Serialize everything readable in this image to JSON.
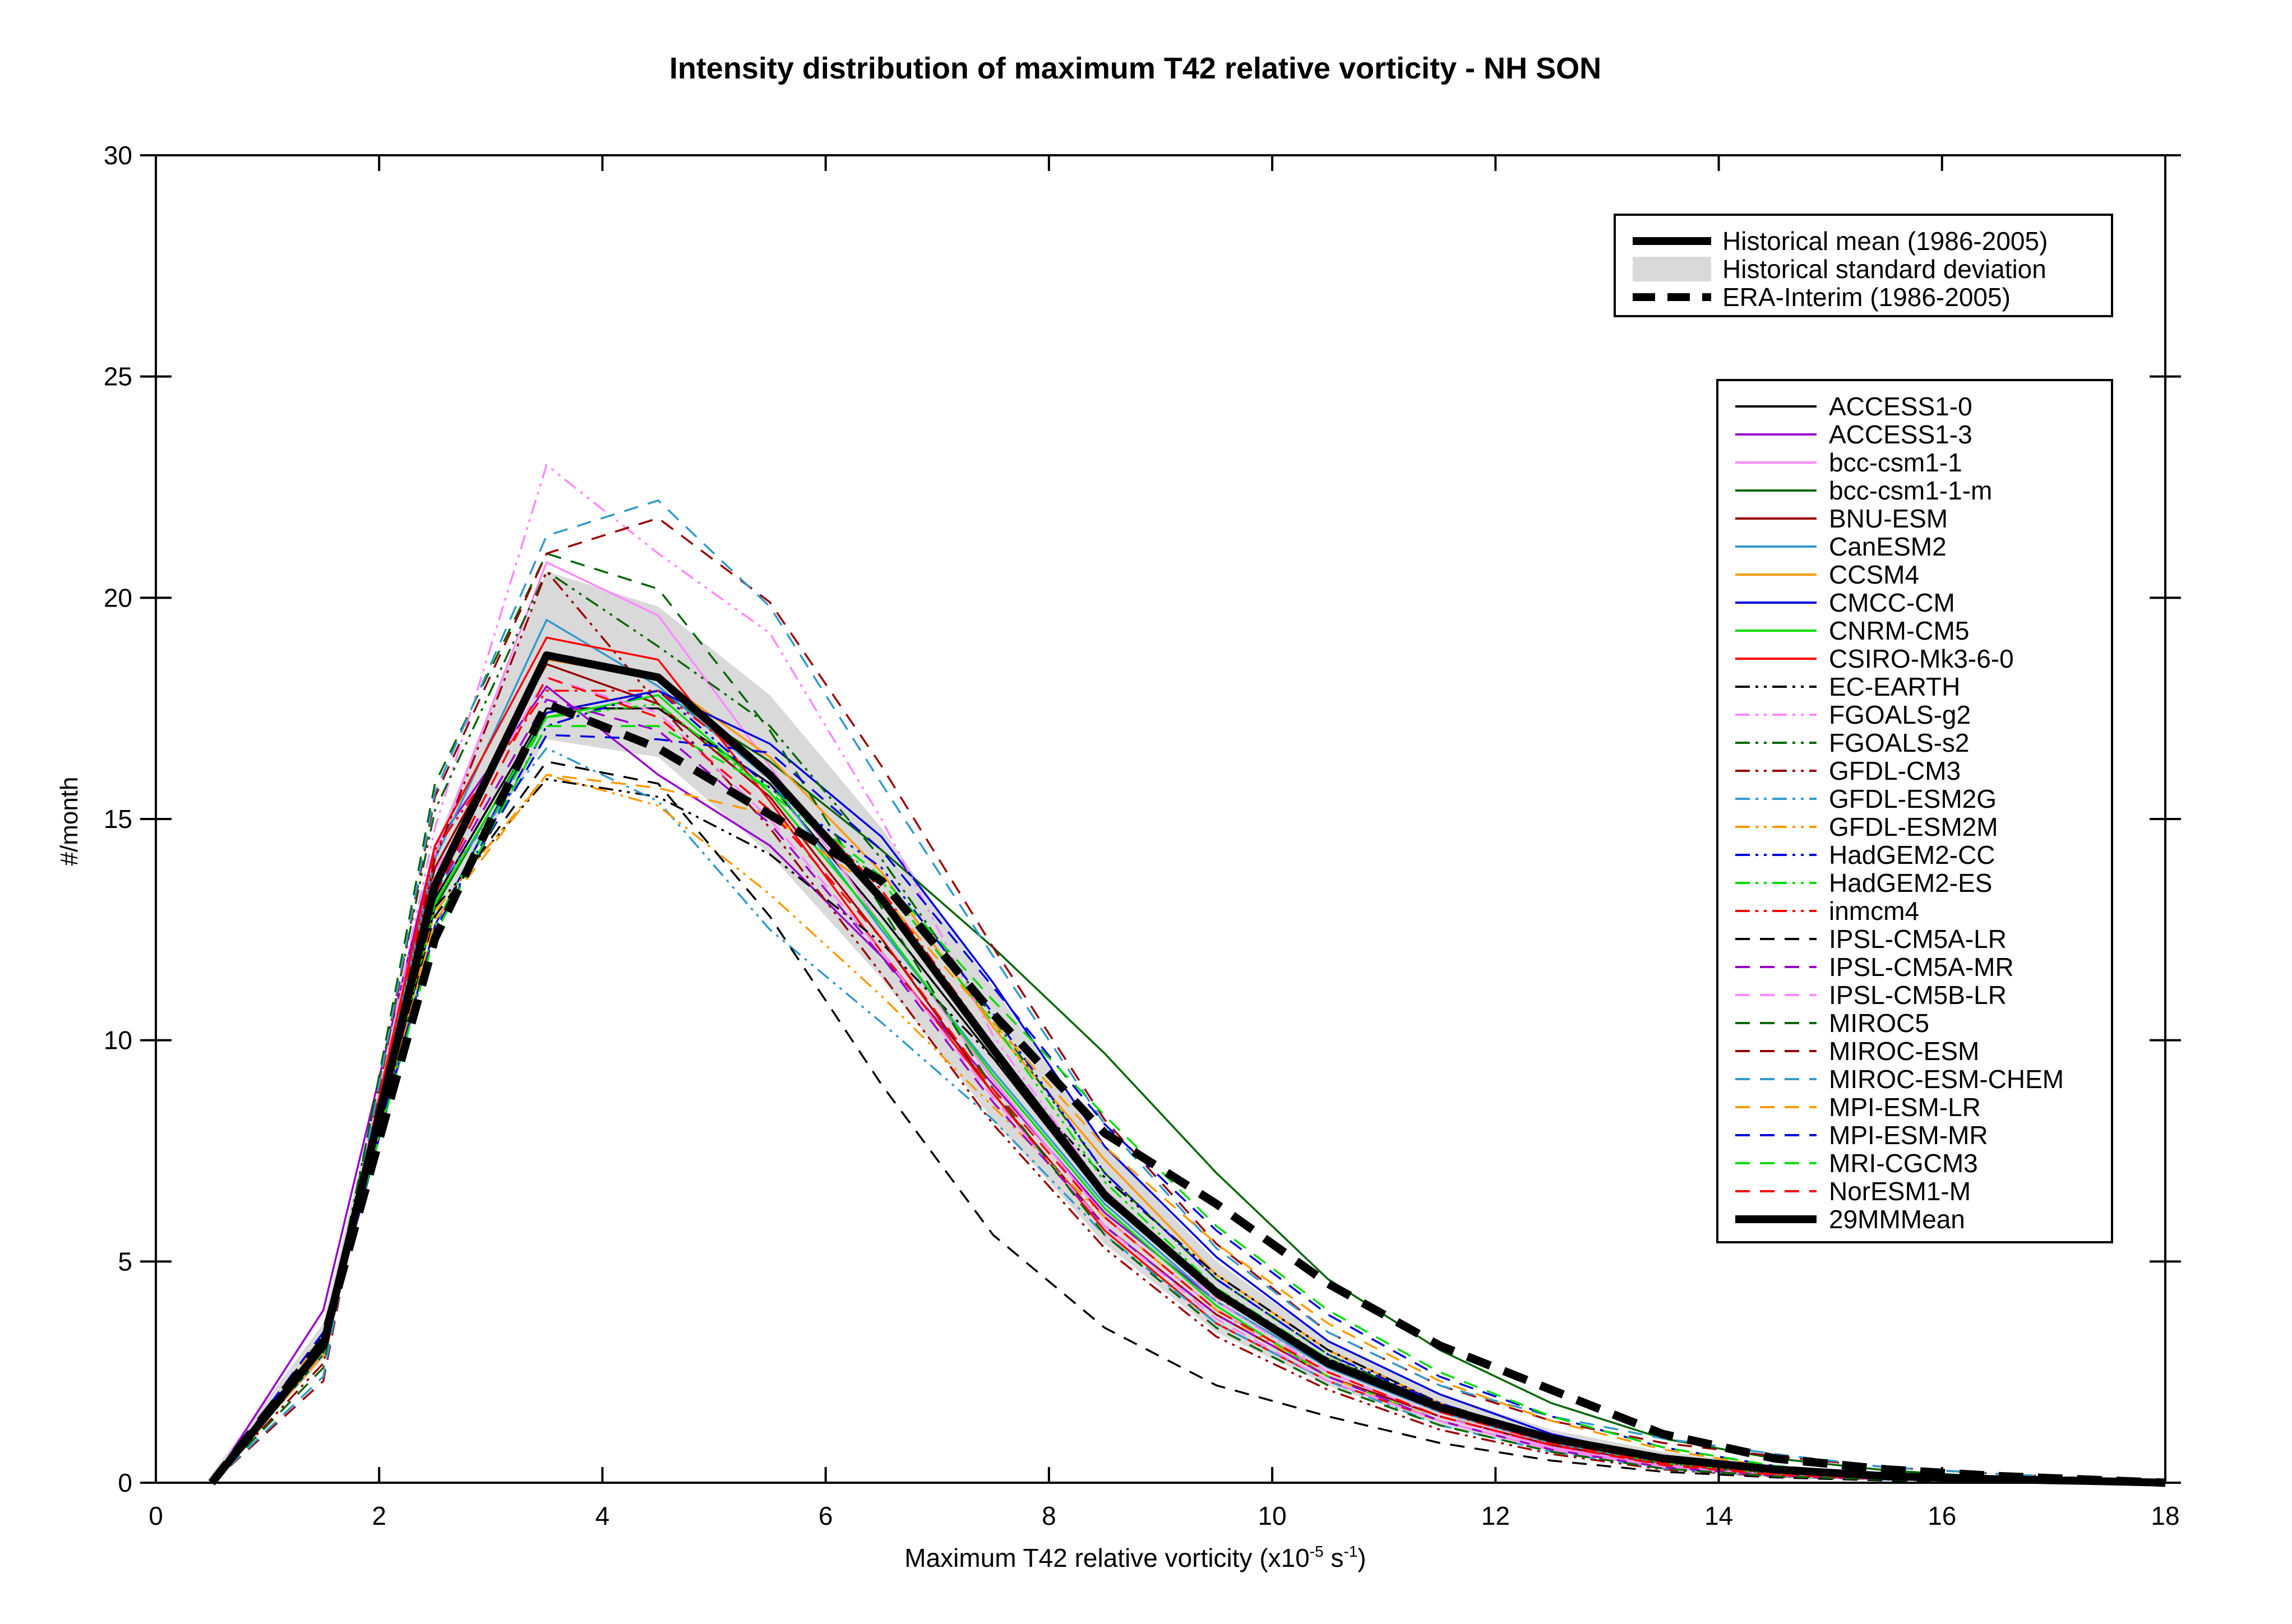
{
  "chart_data": {
    "type": "line",
    "title": "Intensity distribution of maximum T42 relative vorticity - NH SON",
    "xlabel": {
      "text": "Maximum T42 relative vorticity (x10",
      "sup1": "-5",
      "mid": " s",
      "sup2": "-1",
      "end": ")"
    },
    "ylabel": "#/month",
    "xlim": [
      0,
      18
    ],
    "ylim": [
      0,
      30
    ],
    "xticks": [
      "0",
      "2",
      "4",
      "6",
      "8",
      "10",
      "12",
      "14",
      "16",
      "18"
    ],
    "yticks": [
      "0",
      "5",
      "10",
      "15",
      "20",
      "25",
      "30"
    ],
    "x": [
      0.5,
      1.5,
      2.5,
      3.5,
      4.5,
      5.5,
      6.5,
      7.5,
      8.5,
      9.5,
      10.5,
      11.5,
      12.5,
      13.5,
      14.5,
      15.5,
      16.5,
      17.5,
      18
    ],
    "legend_top": [
      {
        "label": "Historical mean (1986-2005)",
        "style": "thick-solid"
      },
      {
        "label": "Historical standard deviation",
        "style": "band"
      },
      {
        "label": "ERA-Interim (1986-2005)",
        "style": "thick-dashed"
      }
    ],
    "band": {
      "upper": [
        0.2,
        3.6,
        14.4,
        20.6,
        19.8,
        17.8,
        14.8,
        11.2,
        7.6,
        5.0,
        3.2,
        2.0,
        1.2,
        0.7,
        0.4,
        0.2,
        0.1,
        0.05,
        0
      ],
      "lower": [
        0,
        2.8,
        12.8,
        16.8,
        16.4,
        14.2,
        11.4,
        8.2,
        5.4,
        3.4,
        2.2,
        1.3,
        0.7,
        0.35,
        0.2,
        0.08,
        0.04,
        0.02,
        0
      ]
    },
    "historical_mean": [
      0,
      3.1,
      13.5,
      18.7,
      18.2,
      16.0,
      13.2,
      9.8,
      6.5,
      4.3,
      2.7,
      1.7,
      1.0,
      0.55,
      0.3,
      0.15,
      0.08,
      0.03,
      0
    ],
    "era_interim": [
      0,
      3.2,
      12.3,
      17.6,
      16.6,
      15.1,
      13.6,
      10.6,
      7.9,
      6.3,
      4.5,
      3.1,
      2.1,
      1.1,
      0.55,
      0.3,
      0.15,
      0.05,
      0
    ],
    "series": [
      {
        "name": "ACCESS1-0",
        "color": "#000000",
        "dash": "solid",
        "values": [
          0,
          3.0,
          13.2,
          17.5,
          17.5,
          15.8,
          12.8,
          9.6,
          6.4,
          4.3,
          2.8,
          1.8,
          1.0,
          0.5,
          0.25,
          0.12,
          0.05,
          0.02,
          0
        ]
      },
      {
        "name": "ACCESS1-3",
        "color": "#9900cc",
        "dash": "solid",
        "values": [
          0,
          3.9,
          14.4,
          18.0,
          16.0,
          14.4,
          11.9,
          9.0,
          6.1,
          4.1,
          2.6,
          1.6,
          0.9,
          0.45,
          0.2,
          0.1,
          0.05,
          0.02,
          0
        ]
      },
      {
        "name": "bcc-csm1-1",
        "color": "#ff88ff",
        "dash": "solid",
        "values": [
          0,
          3.0,
          14.2,
          20.8,
          19.6,
          16.2,
          12.6,
          9.1,
          6.0,
          3.9,
          2.5,
          1.5,
          0.8,
          0.4,
          0.2,
          0.1,
          0.04,
          0.02,
          0
        ]
      },
      {
        "name": "bcc-csm1-1-m",
        "color": "#006600",
        "dash": "solid",
        "values": [
          0,
          2.9,
          13.0,
          17.4,
          17.9,
          16.3,
          14.3,
          12.1,
          9.7,
          7.0,
          4.6,
          3.0,
          1.8,
          1.0,
          0.55,
          0.28,
          0.12,
          0.05,
          0
        ]
      },
      {
        "name": "BNU-ESM",
        "color": "#990000",
        "dash": "solid",
        "values": [
          0,
          3.2,
          13.9,
          18.5,
          17.6,
          15.5,
          12.3,
          8.8,
          5.8,
          3.8,
          2.4,
          1.5,
          0.85,
          0.42,
          0.2,
          0.1,
          0.05,
          0.02,
          0
        ]
      },
      {
        "name": "CanESM2",
        "color": "#3399cc",
        "dash": "solid",
        "values": [
          0,
          3.1,
          14.1,
          19.5,
          18.0,
          15.9,
          12.5,
          9.3,
          6.3,
          4.1,
          2.6,
          1.6,
          0.9,
          0.45,
          0.2,
          0.1,
          0.05,
          0.02,
          0
        ]
      },
      {
        "name": "CCSM4",
        "color": "#ff9900",
        "dash": "solid",
        "values": [
          0,
          3.0,
          13.4,
          18.6,
          18.2,
          16.4,
          13.8,
          10.3,
          7.3,
          4.7,
          3.0,
          1.8,
          1.0,
          0.5,
          0.22,
          0.1,
          0.05,
          0.02,
          0
        ]
      },
      {
        "name": "CMCC-CM",
        "color": "#0000dd",
        "dash": "solid",
        "values": [
          0,
          3.0,
          12.6,
          17.4,
          17.9,
          16.7,
          14.6,
          11.3,
          7.6,
          5.1,
          3.2,
          2.0,
          1.1,
          0.55,
          0.25,
          0.12,
          0.05,
          0.02,
          0
        ]
      },
      {
        "name": "CNRM-CM5",
        "color": "#00dd00",
        "dash": "solid",
        "values": [
          0,
          3.0,
          13.1,
          17.3,
          17.8,
          15.6,
          12.6,
          9.2,
          6.2,
          4.0,
          2.4,
          1.4,
          0.75,
          0.35,
          0.15,
          0.08,
          0.04,
          0.02,
          0
        ]
      },
      {
        "name": "CSIRO-Mk3-6-0",
        "color": "#ff0000",
        "dash": "solid",
        "values": [
          0,
          3.0,
          14.4,
          19.1,
          18.6,
          15.4,
          12.0,
          8.8,
          5.7,
          3.6,
          2.3,
          1.4,
          0.75,
          0.35,
          0.16,
          0.08,
          0.04,
          0.02,
          0
        ]
      },
      {
        "name": "EC-EARTH",
        "color": "#000000",
        "dash": "dashdotdot",
        "values": [
          0,
          3.2,
          13.0,
          15.9,
          15.5,
          14.2,
          12.2,
          9.6,
          6.9,
          4.7,
          3.0,
          1.8,
          1.0,
          0.5,
          0.22,
          0.1,
          0.05,
          0.02,
          0
        ]
      },
      {
        "name": "FGOALS-g2",
        "color": "#ff88ff",
        "dash": "dashdotdot",
        "values": [
          0,
          3.0,
          14.8,
          23.0,
          21.0,
          19.2,
          15.0,
          10.1,
          6.6,
          4.1,
          2.5,
          1.5,
          0.8,
          0.4,
          0.18,
          0.08,
          0.04,
          0.02,
          0
        ]
      },
      {
        "name": "FGOALS-s2",
        "color": "#006600",
        "dash": "dashdotdot",
        "values": [
          0,
          3.0,
          15.2,
          20.6,
          18.9,
          17.1,
          14.1,
          10.5,
          7.0,
          4.6,
          2.9,
          1.7,
          0.95,
          0.45,
          0.2,
          0.1,
          0.05,
          0.02,
          0
        ]
      },
      {
        "name": "GFDL-CM3",
        "color": "#990000",
        "dash": "dashdotdot",
        "values": [
          0,
          2.7,
          14.1,
          20.6,
          17.6,
          14.8,
          11.5,
          8.1,
          5.3,
          3.3,
          2.1,
          1.2,
          0.65,
          0.3,
          0.14,
          0.07,
          0.03,
          0.01,
          0
        ]
      },
      {
        "name": "GFDL-ESM2G",
        "color": "#3399cc",
        "dash": "dashdotdot",
        "values": [
          0,
          2.9,
          13.4,
          16.6,
          15.4,
          12.5,
          10.4,
          8.2,
          5.6,
          3.6,
          2.3,
          1.3,
          0.7,
          0.32,
          0.15,
          0.07,
          0.03,
          0.01,
          0
        ]
      },
      {
        "name": "GFDL-ESM2M",
        "color": "#ff9900",
        "dash": "dashdotdot",
        "values": [
          0,
          2.9,
          12.9,
          16.0,
          15.3,
          13.3,
          11.0,
          8.5,
          6.0,
          3.9,
          2.4,
          1.4,
          0.75,
          0.35,
          0.16,
          0.08,
          0.04,
          0.02,
          0
        ]
      },
      {
        "name": "HadGEM2-CC",
        "color": "#0000dd",
        "dash": "dashdotdot",
        "values": [
          0,
          3.1,
          12.5,
          17.1,
          17.9,
          15.7,
          13.9,
          10.6,
          7.0,
          4.6,
          2.9,
          1.8,
          1.0,
          0.5,
          0.22,
          0.1,
          0.05,
          0.02,
          0
        ]
      },
      {
        "name": "HadGEM2-ES",
        "color": "#00dd00",
        "dash": "dashdotdot",
        "values": [
          0,
          3.1,
          12.6,
          17.3,
          17.6,
          15.6,
          13.6,
          10.4,
          6.8,
          4.4,
          2.8,
          1.7,
          0.95,
          0.45,
          0.2,
          0.1,
          0.05,
          0.02,
          0
        ]
      },
      {
        "name": "inmcm4",
        "color": "#ff0000",
        "dash": "dashdotdot",
        "values": [
          0,
          3.0,
          14.3,
          17.9,
          17.9,
          16.0,
          13.4,
          9.9,
          6.6,
          4.2,
          2.7,
          1.6,
          0.9,
          0.45,
          0.2,
          0.1,
          0.05,
          0.02,
          0
        ]
      },
      {
        "name": "IPSL-CM5A-LR",
        "color": "#000000",
        "dash": "dashed",
        "values": [
          0,
          3.3,
          12.8,
          16.3,
          15.8,
          12.8,
          9.0,
          5.6,
          3.5,
          2.2,
          1.5,
          0.9,
          0.5,
          0.25,
          0.12,
          0.05,
          0.02,
          0.01,
          0
        ]
      },
      {
        "name": "IPSL-CM5A-MR",
        "color": "#9900cc",
        "dash": "dashed",
        "values": [
          0,
          3.0,
          13.3,
          17.7,
          17.0,
          14.9,
          11.9,
          8.6,
          5.8,
          3.8,
          2.4,
          1.4,
          0.75,
          0.35,
          0.16,
          0.08,
          0.04,
          0.02,
          0
        ]
      },
      {
        "name": "IPSL-CM5B-LR",
        "color": "#ff88ff",
        "dash": "dashed",
        "values": [
          0,
          3.1,
          13.8,
          18.2,
          17.4,
          15.0,
          12.0,
          8.7,
          5.8,
          3.7,
          2.3,
          1.4,
          0.75,
          0.35,
          0.16,
          0.08,
          0.04,
          0.02,
          0
        ]
      },
      {
        "name": "MIROC5",
        "color": "#006600",
        "dash": "dashed",
        "values": [
          0,
          2.6,
          15.8,
          21.0,
          20.2,
          17.0,
          13.0,
          8.9,
          5.6,
          3.5,
          2.2,
          1.3,
          0.7,
          0.32,
          0.15,
          0.07,
          0.03,
          0.01,
          0
        ]
      },
      {
        "name": "MIROC-ESM",
        "color": "#990000",
        "dash": "dashed",
        "values": [
          0,
          2.3,
          15.5,
          21.0,
          21.8,
          19.9,
          16.2,
          12.1,
          8.2,
          5.4,
          3.4,
          2.2,
          1.4,
          0.9,
          0.6,
          0.35,
          0.2,
          0.08,
          0
        ]
      },
      {
        "name": "MIROC-ESM-CHEM",
        "color": "#3399cc",
        "dash": "dashed",
        "values": [
          0,
          2.4,
          15.6,
          21.4,
          22.2,
          19.8,
          15.8,
          11.9,
          8.1,
          5.3,
          3.4,
          2.2,
          1.5,
          1.0,
          0.65,
          0.35,
          0.2,
          0.08,
          0
        ]
      },
      {
        "name": "MPI-ESM-LR",
        "color": "#ff9900",
        "dash": "dashed",
        "values": [
          0,
          3.3,
          12.7,
          16.0,
          15.7,
          15.1,
          13.3,
          10.4,
          7.6,
          5.4,
          3.6,
          2.3,
          1.4,
          0.75,
          0.35,
          0.16,
          0.07,
          0.03,
          0
        ]
      },
      {
        "name": "MPI-ESM-MR",
        "color": "#0000dd",
        "dash": "dashed",
        "values": [
          0,
          3.4,
          12.5,
          16.9,
          16.8,
          16.5,
          14.3,
          11.2,
          8.1,
          5.7,
          3.8,
          2.4,
          1.5,
          0.8,
          0.38,
          0.18,
          0.08,
          0.03,
          0
        ]
      },
      {
        "name": "MRI-CGCM3",
        "color": "#00dd00",
        "dash": "dashed",
        "values": [
          0,
          3.2,
          12.4,
          17.1,
          17.1,
          15.7,
          13.7,
          10.9,
          8.3,
          5.8,
          3.9,
          2.5,
          1.5,
          0.8,
          0.38,
          0.18,
          0.08,
          0.03,
          0
        ]
      },
      {
        "name": "NorESM1-M",
        "color": "#ff0000",
        "dash": "dashed",
        "values": [
          0,
          3.1,
          13.3,
          18.2,
          17.3,
          15.2,
          12.3,
          8.9,
          6.0,
          3.9,
          2.5,
          1.5,
          0.85,
          0.4,
          0.18,
          0.09,
          0.04,
          0.02,
          0
        ]
      }
    ],
    "mean_legend_label": "29MMMean",
    "grid": false,
    "legend_placement": [
      "top-right",
      "right"
    ]
  }
}
